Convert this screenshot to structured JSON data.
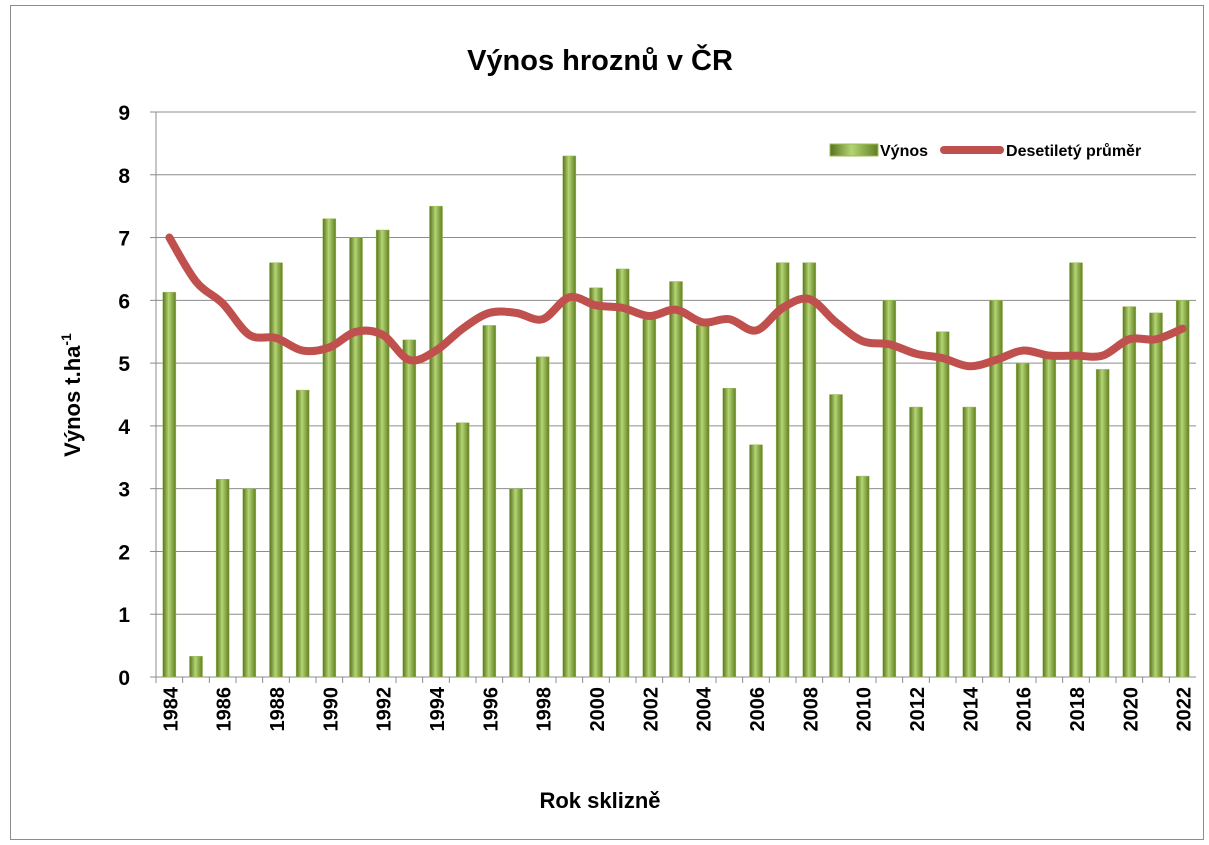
{
  "chart_data": {
    "type": "bar",
    "title": "Výnos hroznů v ČR",
    "x_label": "Rok sklizně",
    "y_label": {
      "text": "Výnos t.ha",
      "superscript": "-1"
    },
    "categories": [
      "1984",
      null,
      "1986",
      null,
      "1988",
      null,
      "1990",
      null,
      "1992",
      null,
      "1994",
      null,
      "1996",
      null,
      "1998",
      null,
      "2000",
      null,
      "2002",
      null,
      "2004",
      null,
      "2006",
      null,
      "2008",
      null,
      "2010",
      null,
      "2012",
      null,
      "2014",
      null,
      "2016",
      null,
      "2018",
      null,
      "2020",
      null,
      "2022"
    ],
    "series": [
      {
        "name": "Výnos",
        "type": "bar",
        "color": "#9bbb59",
        "values": [
          6.13,
          0.33,
          3.15,
          3.0,
          6.6,
          4.57,
          7.3,
          7.0,
          7.12,
          5.37,
          7.5,
          4.05,
          5.6,
          3.0,
          5.1,
          8.3,
          6.2,
          6.5,
          5.7,
          6.3,
          5.6,
          4.6,
          3.7,
          6.6,
          6.6,
          4.5,
          3.2,
          6.0,
          4.3,
          5.5,
          4.3,
          6.0,
          5.0,
          5.1,
          6.6,
          4.9,
          5.9,
          5.8,
          6.0
        ]
      },
      {
        "name": "Desetiletý průměr",
        "type": "line",
        "color": "#c0504d",
        "values": [
          7.0,
          6.3,
          5.95,
          5.45,
          5.4,
          5.2,
          5.25,
          5.5,
          5.45,
          5.05,
          5.2,
          5.55,
          5.8,
          5.8,
          5.7,
          6.05,
          5.92,
          5.88,
          5.75,
          5.85,
          5.65,
          5.7,
          5.52,
          5.88,
          6.02,
          5.65,
          5.35,
          5.3,
          5.15,
          5.08,
          4.95,
          5.05,
          5.2,
          5.12,
          5.12,
          5.12,
          5.38,
          5.38,
          5.55
        ]
      }
    ],
    "ylim": [
      0,
      9
    ],
    "yticks": [
      0,
      1,
      2,
      3,
      4,
      5,
      6,
      7,
      8,
      9
    ],
    "grid": true,
    "legend": "top-right"
  }
}
